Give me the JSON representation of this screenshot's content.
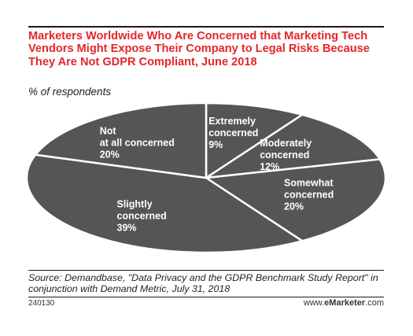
{
  "chart_data": {
    "type": "pie",
    "title": "Marketers Worldwide Who Are Concerned that Marketing Tech Vendors Might Expose Their Company to Legal Risks Because They Are Not GDPR Compliant, June 2018",
    "subtitle": "% of respondents",
    "slices": [
      {
        "label": "Extremely concerned",
        "value": 9,
        "value_label": "9%"
      },
      {
        "label": "Moderately concerned",
        "value": 12,
        "value_label": "12%"
      },
      {
        "label": "Somewhat concerned",
        "value": 20,
        "value_label": "20%"
      },
      {
        "label": "Slightly concerned",
        "value": 39,
        "value_label": "39%"
      },
      {
        "label": "Not at all concerned",
        "value": 20,
        "value_label": "20%"
      }
    ],
    "slice_color": "#555555",
    "label_color": "#ffffff",
    "separator_color": "#ffffff"
  },
  "source": "Source: Demandbase, \"Data Privacy and the GDPR Benchmark Study Report\" in conjunction with Demand Metric, July 31, 2018",
  "footer": {
    "chart_id": "240130",
    "brand_prefix": "www.",
    "brand_name": "eMarketer",
    "brand_suffix": ".com"
  },
  "colors": {
    "title": "#e3262b"
  }
}
